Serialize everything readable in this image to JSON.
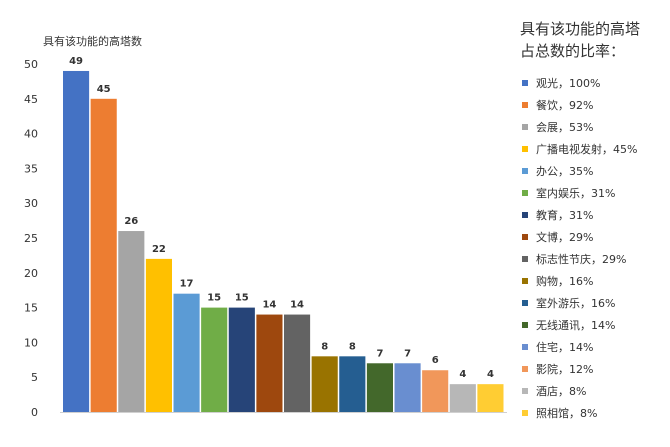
{
  "chart_data": {
    "type": "bar",
    "ylabel": "具有该功能的高塔数",
    "ylim": [
      0,
      50
    ],
    "yticks": [
      0,
      5,
      10,
      15,
      20,
      25,
      30,
      35,
      40,
      45,
      50
    ],
    "grid": false,
    "legend_title_lines": [
      "具有该功能的高塔",
      "占总数的比率："
    ],
    "legend_position": "right",
    "values": [
      49,
      45,
      26,
      22,
      17,
      15,
      15,
      14,
      14,
      8,
      8,
      7,
      7,
      6,
      4,
      4
    ],
    "colors": [
      "#4472C4",
      "#ED7D31",
      "#A5A5A5",
      "#FFC000",
      "#5B9BD5",
      "#70AD47",
      "#264478",
      "#9E480E",
      "#636363",
      "#997300",
      "#255E91",
      "#43682B",
      "#698ED0",
      "#F1975A",
      "#B7B7B7",
      "#FFCD33"
    ],
    "legend": [
      "观光，100%",
      "餐饮，92%",
      "会展，53%",
      "广播电视发射，45%",
      "办公，35%",
      "室内娱乐，31%",
      "教育，31%",
      "文博，29%",
      "标志性节庆，29%",
      "购物，16%",
      "室外游乐，16%",
      "无线通讯，14%",
      "住宅，14%",
      "影院，12%",
      "酒店，8%",
      "照相馆，8%"
    ]
  }
}
